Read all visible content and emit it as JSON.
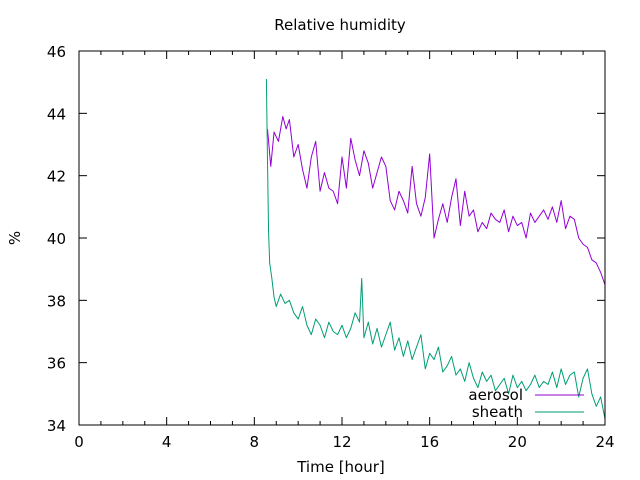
{
  "chart_data": {
    "type": "line",
    "title": "Relative humidity",
    "xlabel": "Time [hour]",
    "ylabel": "%",
    "xlim": [
      0,
      24
    ],
    "ylim": [
      34,
      46
    ],
    "x_ticks": [
      "0",
      "4",
      "8",
      "12",
      "16",
      "20",
      "24"
    ],
    "y_ticks": [
      "34",
      "36",
      "38",
      "40",
      "42",
      "44",
      "46"
    ],
    "grid": false,
    "legend_position": "bottom-right",
    "series": [
      {
        "name": "aerosol",
        "color": "#9400d3",
        "x": [
          8.6,
          8.75,
          8.9,
          9.1,
          9.3,
          9.45,
          9.6,
          9.8,
          10.0,
          10.2,
          10.4,
          10.6,
          10.8,
          11.0,
          11.2,
          11.4,
          11.6,
          11.8,
          12.0,
          12.2,
          12.4,
          12.6,
          12.8,
          13.0,
          13.2,
          13.4,
          13.6,
          13.8,
          14.0,
          14.2,
          14.4,
          14.6,
          14.8,
          15.0,
          15.2,
          15.4,
          15.6,
          15.8,
          16.0,
          16.2,
          16.4,
          16.6,
          16.8,
          17.0,
          17.2,
          17.4,
          17.6,
          17.8,
          18.0,
          18.2,
          18.4,
          18.6,
          18.8,
          19.0,
          19.2,
          19.4,
          19.6,
          19.8,
          20.0,
          20.2,
          20.4,
          20.6,
          20.8,
          21.0,
          21.2,
          21.4,
          21.6,
          21.8,
          22.0,
          22.2,
          22.4,
          22.6,
          22.8,
          23.0,
          23.2,
          23.4,
          23.6,
          23.8,
          24.0
        ],
        "y": [
          43.5,
          42.3,
          43.4,
          43.1,
          43.9,
          43.5,
          43.8,
          42.6,
          43.0,
          42.2,
          41.6,
          42.6,
          43.1,
          41.5,
          42.1,
          41.6,
          41.5,
          41.1,
          42.6,
          41.6,
          43.2,
          42.5,
          42.0,
          42.8,
          42.4,
          41.6,
          42.1,
          42.6,
          42.3,
          41.2,
          40.9,
          41.5,
          41.2,
          40.8,
          42.3,
          41.1,
          40.7,
          41.3,
          42.7,
          40.0,
          40.6,
          41.1,
          40.5,
          41.3,
          41.9,
          40.4,
          41.5,
          40.7,
          40.9,
          40.2,
          40.5,
          40.3,
          40.8,
          40.6,
          40.5,
          40.9,
          40.2,
          40.7,
          40.4,
          40.5,
          40.0,
          40.8,
          40.5,
          40.7,
          40.9,
          40.6,
          41.0,
          40.5,
          41.2,
          40.3,
          40.7,
          40.6,
          40.0,
          39.8,
          39.7,
          39.3,
          39.2,
          38.9,
          38.5
        ]
      },
      {
        "name": "sheath",
        "color": "#009e73",
        "x": [
          8.55,
          8.6,
          8.65,
          8.7,
          8.8,
          8.9,
          9.0,
          9.2,
          9.4,
          9.6,
          9.8,
          10.0,
          10.2,
          10.4,
          10.6,
          10.8,
          11.0,
          11.2,
          11.4,
          11.6,
          11.8,
          12.0,
          12.2,
          12.4,
          12.6,
          12.8,
          12.9,
          13.0,
          13.2,
          13.4,
          13.6,
          13.8,
          14.0,
          14.2,
          14.4,
          14.6,
          14.8,
          15.0,
          15.2,
          15.4,
          15.6,
          15.8,
          16.0,
          16.2,
          16.4,
          16.6,
          16.8,
          17.0,
          17.2,
          17.4,
          17.6,
          17.8,
          18.0,
          18.2,
          18.4,
          18.6,
          18.8,
          19.0,
          19.2,
          19.4,
          19.6,
          19.8,
          20.0,
          20.2,
          20.4,
          20.6,
          20.8,
          21.0,
          21.2,
          21.4,
          21.6,
          21.8,
          22.0,
          22.2,
          22.4,
          22.6,
          22.8,
          23.0,
          23.2,
          23.4,
          23.6,
          23.8,
          24.0
        ],
        "y": [
          45.1,
          42.5,
          40.2,
          39.2,
          38.7,
          38.1,
          37.8,
          38.2,
          37.9,
          38.0,
          37.6,
          37.4,
          37.8,
          37.2,
          36.9,
          37.4,
          37.2,
          36.8,
          37.3,
          37.0,
          36.9,
          37.2,
          36.8,
          37.1,
          37.6,
          37.3,
          38.7,
          36.8,
          37.3,
          36.6,
          37.1,
          36.5,
          36.9,
          37.3,
          36.4,
          36.8,
          36.2,
          36.7,
          36.1,
          36.5,
          36.9,
          35.8,
          36.3,
          36.1,
          36.5,
          35.7,
          35.9,
          36.2,
          35.6,
          35.8,
          35.4,
          36.0,
          35.5,
          35.2,
          35.7,
          35.4,
          35.6,
          35.1,
          35.3,
          35.5,
          35.0,
          35.6,
          35.2,
          35.4,
          35.1,
          35.3,
          35.6,
          35.2,
          35.4,
          35.3,
          35.7,
          35.2,
          35.8,
          35.3,
          35.6,
          35.7,
          34.9,
          35.5,
          35.8,
          35.0,
          34.6,
          34.9,
          34.2
        ]
      }
    ]
  }
}
